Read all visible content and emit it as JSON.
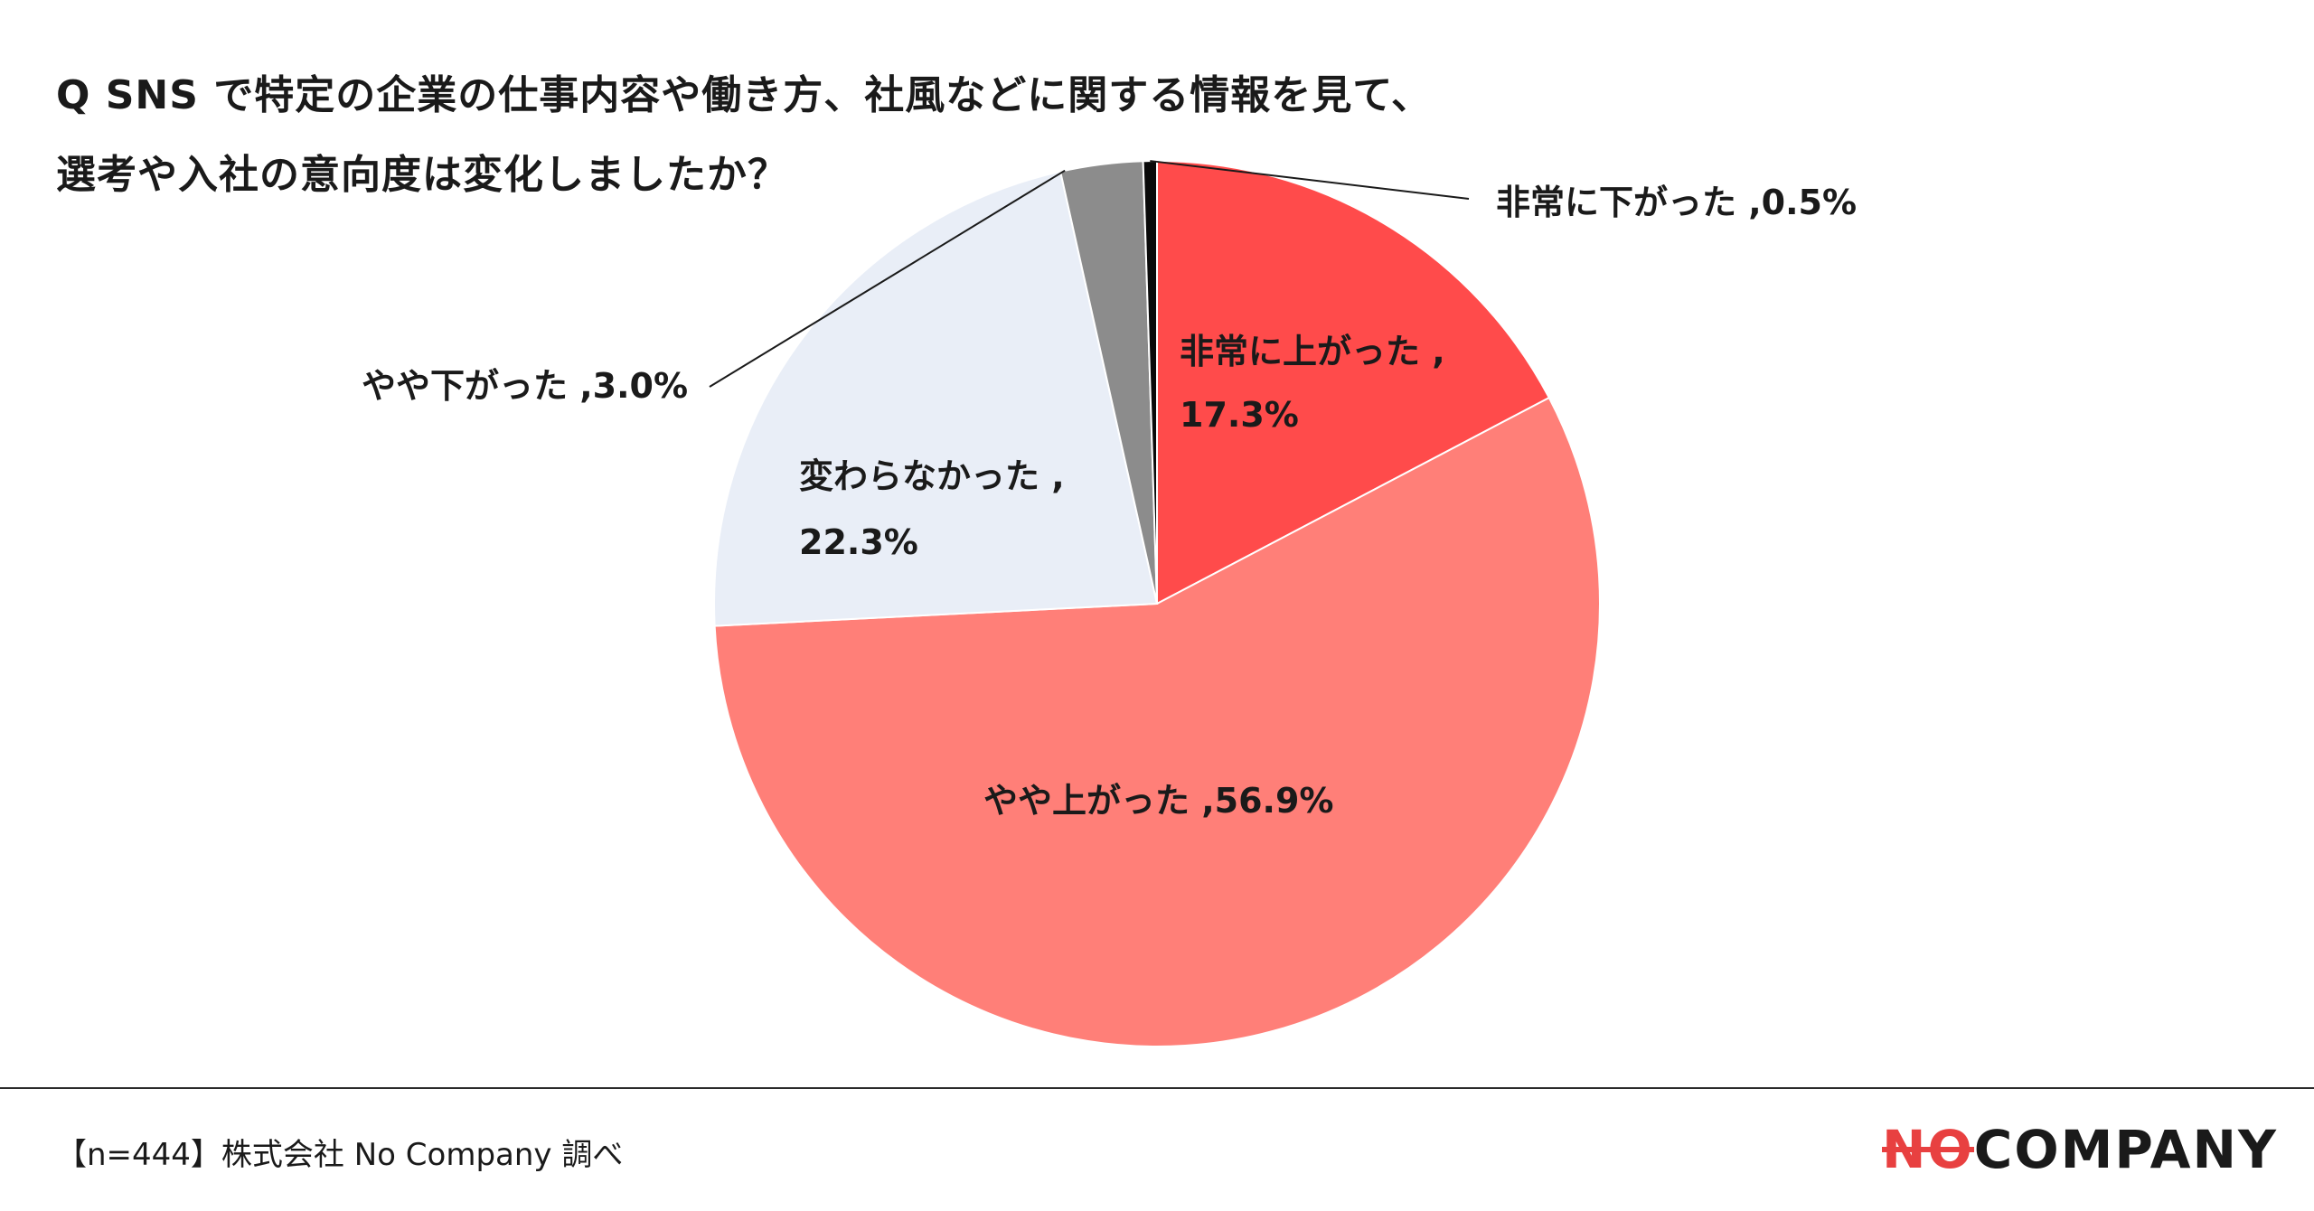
{
  "title": {
    "line1": "Q SNS で特定の企業の仕事内容や働き方、社風などに関する情報を見て、",
    "line2": "選考や入社の意向度は変化しましたか？"
  },
  "chart_data": {
    "type": "pie",
    "title": "Q SNS で特定の企業の仕事内容や働き方、社風などに関する情報を見て、選考や入社の意向度は変化しましたか？",
    "slices": [
      {
        "label": "非常に上がった",
        "value": 17.3,
        "display": "17.3%",
        "color": "#ff4b4b"
      },
      {
        "label": "やや上がった",
        "value": 56.9,
        "display": "56.9%",
        "color": "#ff7f78"
      },
      {
        "label": "変わらなかった",
        "value": 22.3,
        "display": "22.3%",
        "color": "#e9eef7"
      },
      {
        "label": "やや下がった",
        "value": 3.0,
        "display": "3.0%",
        "color": "#8c8c8c"
      },
      {
        "label": "非常に下がった",
        "value": 0.5,
        "display": "0.5%",
        "color": "#0a0a0a"
      }
    ]
  },
  "footer": {
    "note": "【n=444】株式会社 No Company 調べ"
  },
  "logo": {
    "part_no": "NO",
    "part_company": "COMPANY"
  }
}
